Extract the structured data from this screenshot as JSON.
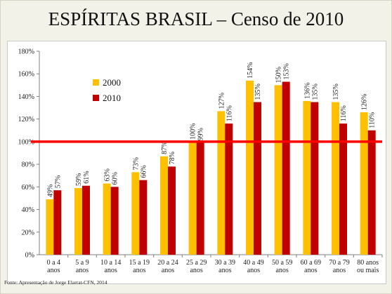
{
  "slide": {
    "title": "ESPÍRITAS BRASIL – Censo de 2010",
    "source": "Fonte: Apresentação de Jorge Elarrat-CFN, 2014"
  },
  "colors": {
    "series_2000": "#ffc000",
    "series_2010": "#c00000",
    "reference_line": "#ff0000",
    "background": "#f3f2e8",
    "plot_background": "#ffffff",
    "axis": "#808080"
  },
  "chart_data": {
    "type": "bar",
    "categories": [
      [
        "0 a 4",
        "anos"
      ],
      [
        "5 a 9",
        "anos"
      ],
      [
        "10 a 14",
        "anos"
      ],
      [
        "15 a 19",
        "anos"
      ],
      [
        "20 a 24",
        "anos"
      ],
      [
        "25 a 29",
        "anos"
      ],
      [
        "30 a 39",
        "anos"
      ],
      [
        "40 a 49",
        "anos"
      ],
      [
        "50 a 59",
        "anos"
      ],
      [
        "60 a 69",
        "anos"
      ],
      [
        "70 a 79",
        "anos"
      ],
      [
        "80 anos",
        "ou mais"
      ]
    ],
    "series": [
      {
        "name": "2000",
        "values": [
          49,
          59,
          63,
          73,
          87,
          100,
          127,
          154,
          150,
          136,
          135,
          126
        ],
        "labels": [
          "49%",
          "59%",
          "63%",
          "73%",
          "87%",
          "100%",
          "127%",
          "154%",
          "150%",
          "136%",
          "135%",
          "126%"
        ]
      },
      {
        "name": "2010",
        "values": [
          57,
          61,
          60,
          66,
          78,
          99,
          116,
          135,
          153,
          135,
          116,
          110
        ],
        "labels": [
          "57%",
          "61%",
          "60%",
          "66%",
          "78%",
          "99%",
          "116%",
          "135%",
          "153%",
          "135%",
          "116%",
          "110%"
        ]
      }
    ],
    "ylim": [
      0,
      180
    ],
    "y_tick_values": [
      0,
      20,
      40,
      60,
      80,
      100,
      120,
      140,
      160,
      180
    ],
    "y_tick_labels": [
      "0%",
      "20%",
      "40%",
      "60%",
      "80%",
      "100%",
      "120%",
      "140%",
      "160%",
      "180%"
    ],
    "reference_line_value": 100,
    "grid": false,
    "legend_position": "upper-left",
    "xlabel": "",
    "ylabel": ""
  }
}
